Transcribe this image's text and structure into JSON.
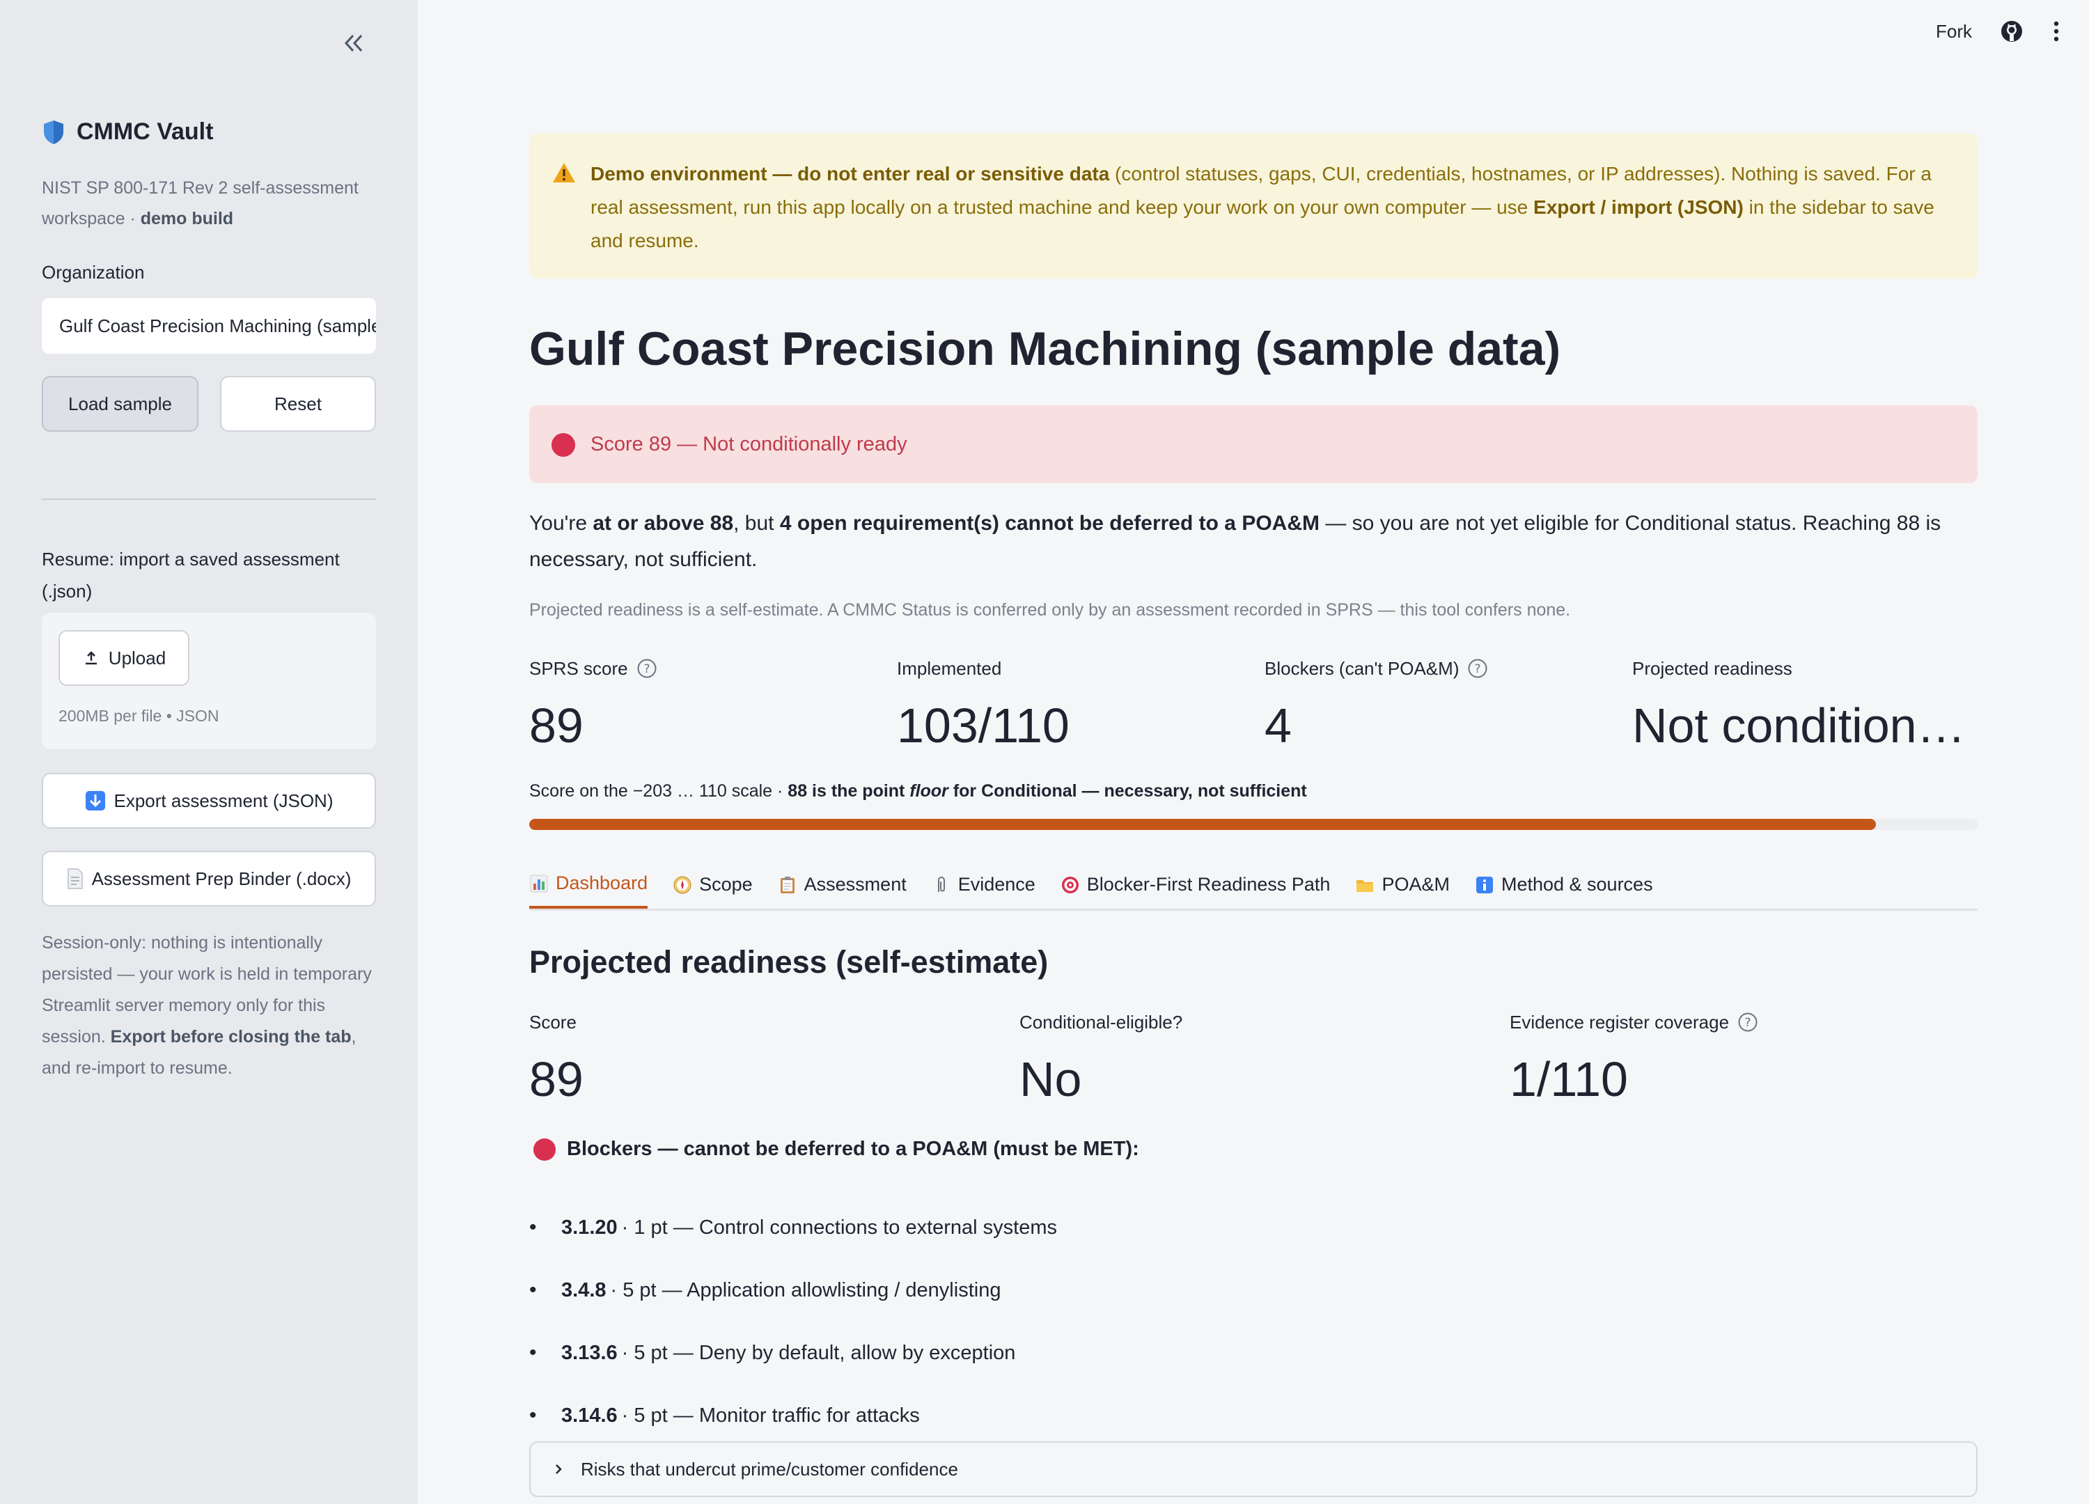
{
  "sidebar": {
    "brand_title": "CMMC Vault",
    "brand_sub_text": "NIST SP 800-171 Rev 2 self-assessment workspace · ",
    "brand_sub_bold": "demo build",
    "org_label": "Organization",
    "org_value": "Gulf Coast Precision Machining (sample data)",
    "load_sample_label": "Load sample",
    "reset_label": "Reset",
    "resume_label": "Resume: import a saved assessment (.json)",
    "upload_label": "Upload",
    "upload_hint": "200MB per file • JSON",
    "export_label": "Export assessment (JSON)",
    "binder_label": "Assessment Prep Binder (.docx)",
    "session_note_1": "Session-only: nothing is intentionally persisted — your work is held in temporary Streamlit server memory only for this session. ",
    "session_note_bold": "Export before closing the tab",
    "session_note_2": ", and re-import to resume."
  },
  "topbar": {
    "fork_label": "Fork"
  },
  "warning": {
    "bold1": "Demo environment — do not enter real or sensitive data",
    "text1": " (control statuses, gaps, CUI, credentials, hostnames, or IP addresses). Nothing is saved. For a real assessment, run this app locally on a trusted machine and keep your work on your own computer — use ",
    "bold2": "Export / import (JSON)",
    "text2": " in the sidebar to save and resume."
  },
  "page_title": "Gulf Coast Precision Machining (sample data)",
  "status_alert": "Score 89 — Not conditionally ready",
  "summary": {
    "t1": "You're ",
    "b1": "at or above 88",
    "t2": ", but ",
    "b2": "4 open requirement(s) cannot be deferred to a POA&M",
    "t3": " — so you are not yet eligible for Conditional status. Reaching 88 is necessary, not sufficient."
  },
  "caption": "Projected readiness is a self-estimate. A CMMC Status is conferred only by an assessment recorded in SPRS — this tool confers none.",
  "metrics": [
    {
      "label": "SPRS score",
      "value": "89"
    },
    {
      "label": "Implemented",
      "value": "103/110"
    },
    {
      "label": "Blockers (can't POA&M)",
      "value": "4"
    },
    {
      "label": "Projected readiness",
      "value": "Not conditionally ready"
    }
  ],
  "scale": {
    "t1": "Score on the −203 … 110 scale · ",
    "b1": "88 is the point ",
    "i1": "floor",
    "b2": " for Conditional — necessary, not sufficient",
    "progress_fraction": 0.93
  },
  "tabs": [
    {
      "label": "Dashboard",
      "icon": "bar-chart-icon"
    },
    {
      "label": "Scope",
      "icon": "compass-icon"
    },
    {
      "label": "Assessment",
      "icon": "clipboard-icon"
    },
    {
      "label": "Evidence",
      "icon": "paperclip-icon"
    },
    {
      "label": "Blocker-First Readiness Path",
      "icon": "target-icon"
    },
    {
      "label": "POA&M",
      "icon": "folder-icon"
    },
    {
      "label": "Method & sources",
      "icon": "info-icon"
    }
  ],
  "section_title": "Projected readiness (self-estimate)",
  "readiness": [
    {
      "label": "Score",
      "value": "89"
    },
    {
      "label": "Conditional-eligible?",
      "value": "No"
    },
    {
      "label": "Evidence register coverage",
      "value": "1/110"
    }
  ],
  "blockers_heading": "Blockers — cannot be deferred to a POA&M (must be MET):",
  "blockers": [
    {
      "id": "3.1.20",
      "text": " · 1 pt — Control connections to external systems"
    },
    {
      "id": "3.4.8",
      "text": " · 5 pt — Application allowlisting / denylisting"
    },
    {
      "id": "3.13.6",
      "text": " · 5 pt — Deny by default, allow by exception"
    },
    {
      "id": "3.14.6",
      "text": " · 5 pt — Monitor traffic for attacks"
    }
  ],
  "expander_label": "Risks that undercut prime/customer confidence",
  "colors": {
    "accent": "#c4561a",
    "error": "#d9304f",
    "warning_bg": "#f8f5dc",
    "error_bg": "#f8e0e1"
  }
}
